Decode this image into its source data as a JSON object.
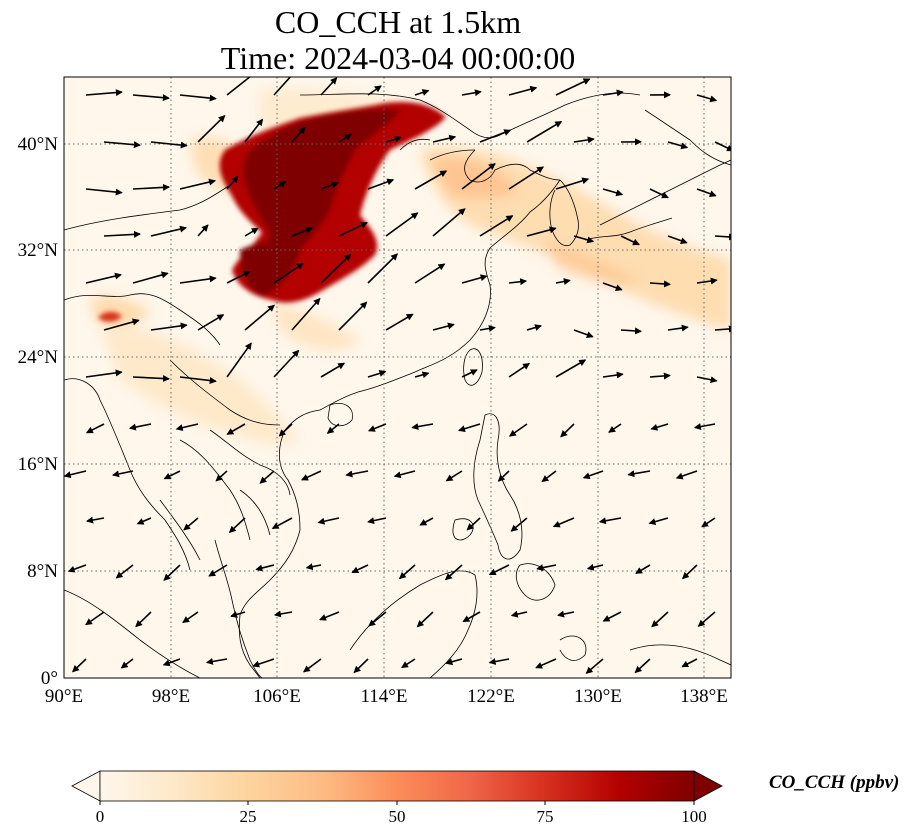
{
  "figure": {
    "title_line1": "CO_CCH at 1.5km",
    "title_line2": "Time: 2024-03-04 00:00:00"
  },
  "map": {
    "projection": "PlateCarree",
    "lon_range": [
      90,
      140
    ],
    "lat_range": [
      0,
      45
    ],
    "gridlines": "dotted",
    "lon_ticks": [
      {
        "value": 90,
        "label": "90°E"
      },
      {
        "value": 98,
        "label": "98°E"
      },
      {
        "value": 106,
        "label": "106°E"
      },
      {
        "value": 114,
        "label": "114°E"
      },
      {
        "value": 122,
        "label": "122°E"
      },
      {
        "value": 130,
        "label": "130°E"
      },
      {
        "value": 138,
        "label": "138°E"
      }
    ],
    "lat_ticks": [
      {
        "value": 0,
        "label": "0°"
      },
      {
        "value": 8,
        "label": "8°N"
      },
      {
        "value": 16,
        "label": "16°N"
      },
      {
        "value": 24,
        "label": "24°N"
      },
      {
        "value": 32,
        "label": "32°N"
      },
      {
        "value": 40,
        "label": "40°N"
      }
    ],
    "plume_color": "#7f0000",
    "colormap": "OrRd"
  },
  "colorbar": {
    "label": "CO_CCH (ppbv)",
    "min": 0,
    "max": 100,
    "extend": "both",
    "ticks": [
      {
        "value": 0,
        "label": "0"
      },
      {
        "value": 25,
        "label": "25"
      },
      {
        "value": 50,
        "label": "50"
      },
      {
        "value": 75,
        "label": "75"
      },
      {
        "value": 100,
        "label": "100"
      }
    ],
    "colors": [
      "#fff7ec",
      "#fee8c8",
      "#fdd49e",
      "#fdbb84",
      "#fc8d59",
      "#ef6548",
      "#d7301f",
      "#b30000",
      "#7f0000"
    ]
  }
}
